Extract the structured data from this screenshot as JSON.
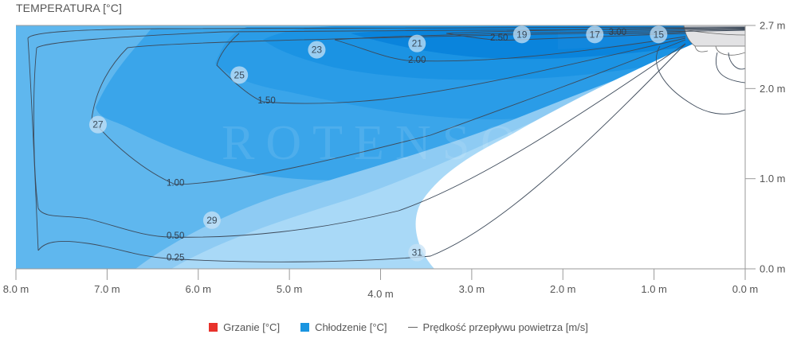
{
  "chart_data": {
    "type": "heatmap",
    "subtype": "contour",
    "title": "TEMPERATURA [°C]",
    "xlabel": "",
    "ylabel": "",
    "x_axis": {
      "reversed": true,
      "range_m": [
        8.0,
        0.0
      ],
      "ticks": [
        8.0,
        7.0,
        6.0,
        5.0,
        4.0,
        3.0,
        2.0,
        1.0,
        0.0
      ],
      "tick_labels": [
        "8.0 m",
        "7.0 m",
        "6.0 m",
        "5.0 m",
        "4.0 m",
        "3.0 m",
        "2.0 m",
        "1.0 m",
        "0.0 m"
      ]
    },
    "y_axis": {
      "position": "right",
      "range_m": [
        0.0,
        2.7
      ],
      "ticks": [
        0.0,
        1.0,
        2.0,
        2.7
      ],
      "tick_labels": [
        "0.0 m",
        "1.0 m",
        "2.0 m",
        "2.7 m"
      ]
    },
    "temperature_labels_c": [
      {
        "value": 15,
        "x_m": 0.95,
        "y_m": 2.6
      },
      {
        "value": 17,
        "x_m": 1.65,
        "y_m": 2.6
      },
      {
        "value": 19,
        "x_m": 2.45,
        "y_m": 2.6
      },
      {
        "value": 21,
        "x_m": 3.6,
        "y_m": 2.5
      },
      {
        "value": 23,
        "x_m": 4.7,
        "y_m": 2.43
      },
      {
        "value": 25,
        "x_m": 5.55,
        "y_m": 2.15
      },
      {
        "value": 27,
        "x_m": 7.1,
        "y_m": 1.6
      },
      {
        "value": 29,
        "x_m": 5.85,
        "y_m": 0.54
      },
      {
        "value": 31,
        "x_m": 3.6,
        "y_m": 0.18
      }
    ],
    "velocity_contour_labels_ms": [
      {
        "value": "3.00",
        "x_m": 1.4,
        "y_m": 2.62
      },
      {
        "value": "2.50",
        "x_m": 2.7,
        "y_m": 2.56
      },
      {
        "value": "2.00",
        "x_m": 3.6,
        "y_m": 2.31
      },
      {
        "value": "1.50",
        "x_m": 5.25,
        "y_m": 1.86
      },
      {
        "value": "1.00",
        "x_m": 6.25,
        "y_m": 0.95
      },
      {
        "value": "0.50",
        "x_m": 6.25,
        "y_m": 0.36
      },
      {
        "value": "0.25",
        "x_m": 6.25,
        "y_m": 0.12
      }
    ],
    "temperature_bands_c": [
      15,
      17,
      19,
      21,
      23,
      25,
      27,
      29,
      31
    ],
    "legend": {
      "placement": "bottom-center",
      "items": [
        {
          "label": "Grzanie [°C]",
          "color": "#e8322b",
          "kind": "square"
        },
        {
          "label": "Chłodzenie [°C]",
          "color": "#1a95e0",
          "kind": "square"
        },
        {
          "label": "Prędkość przepływu powietrza [m/s]",
          "color": "#666666",
          "kind": "line"
        }
      ]
    }
  },
  "watermark": "ROTENSO",
  "colors": {
    "band_outer": "#5fb7ee",
    "band_mid": "#3aa5ea",
    "band_core": "#1b93e3",
    "band_jet": "#0a84dc",
    "band_light": "#8ecbf3",
    "band_lightest": "#a9d9f7",
    "unit": "#e2e2e4",
    "axis": "#9a9a9a",
    "contour": "#3d4a5a",
    "badge": "#c7e2f5"
  }
}
